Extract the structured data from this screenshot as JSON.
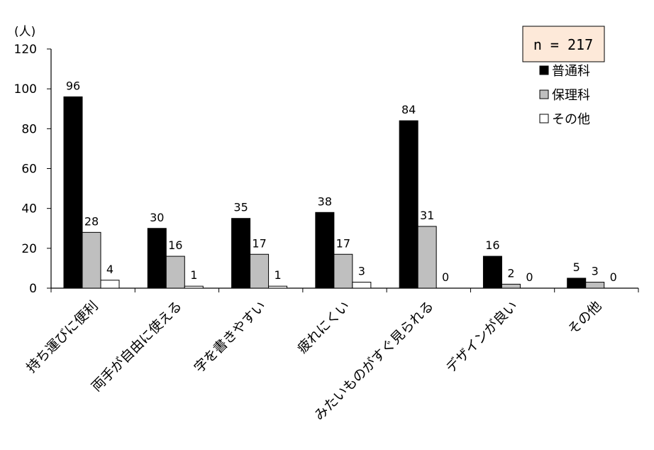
{
  "chart_data": {
    "type": "bar",
    "unit_label": "(人)",
    "ylim": [
      0,
      120
    ],
    "yticks": [
      0,
      20,
      40,
      60,
      80,
      100,
      120
    ],
    "categories": [
      "持ち運びに便利",
      "両手が自由に使える",
      "字を書きやすい",
      "疲れにくい",
      "みたいものがすぐ見られる",
      "デザインが良い",
      "その他"
    ],
    "series": [
      {
        "name": "普通科",
        "values": [
          96,
          30,
          35,
          38,
          84,
          16,
          5
        ],
        "color": "#000000"
      },
      {
        "name": "保理科",
        "values": [
          28,
          16,
          17,
          17,
          31,
          2,
          3
        ],
        "color": "#bfbfbf"
      },
      {
        "name": "その他",
        "values": [
          4,
          1,
          1,
          3,
          0,
          0,
          0
        ],
        "color": "#ffffff"
      }
    ],
    "sample_size": "n = 217",
    "legend_position": "top-right",
    "grid": false
  }
}
